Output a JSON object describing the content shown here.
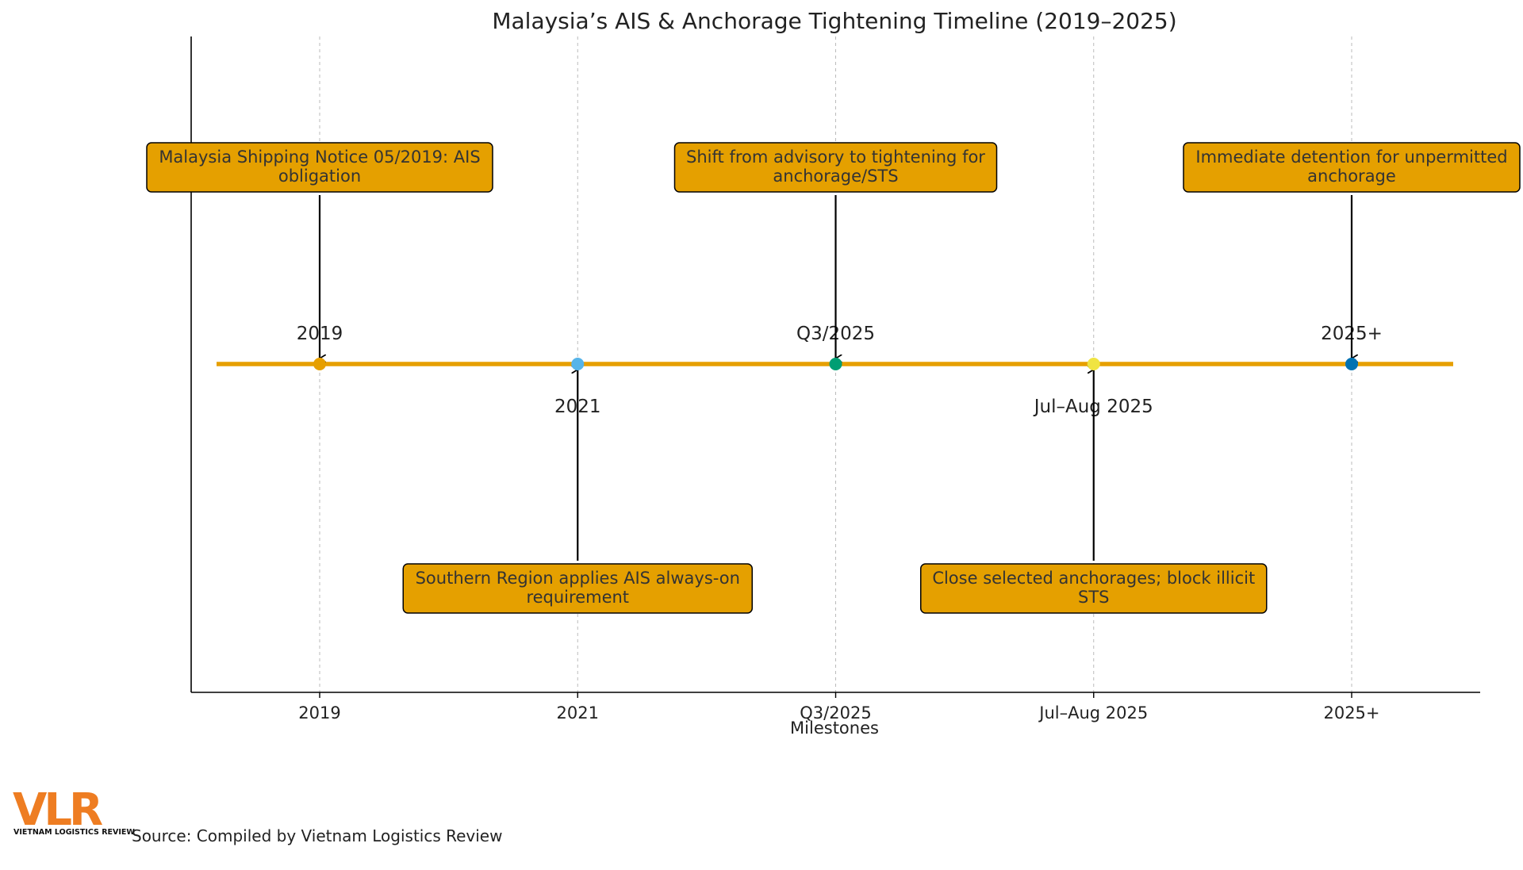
{
  "chart_data": {
    "type": "timeline",
    "title": "Malaysia’s AIS & Anchorage Tightening Timeline (2019–2025)",
    "xlabel": "Milestones",
    "ylabel": "",
    "categories": [
      "2019",
      "2021",
      "Q3/2025",
      "Jul–Aug 2025",
      "2025+"
    ],
    "grid": "vertical dashed at each milestone",
    "line_color": "#E69F00",
    "events": [
      {
        "date": "2019",
        "position": "above",
        "color": "#E69F00",
        "lines": [
          "Malaysia Shipping Notice 05/2019: AIS",
          "obligation"
        ]
      },
      {
        "date": "2021",
        "position": "below",
        "color": "#56B4E9",
        "lines": [
          "Southern Region applies AIS always-on",
          "requirement"
        ]
      },
      {
        "date": "Q3/2025",
        "position": "above",
        "color": "#009E73",
        "lines": [
          "Shift from advisory to tightening for",
          "anchorage/STS"
        ]
      },
      {
        "date": "Jul–Aug 2025",
        "position": "below",
        "color": "#F0E442",
        "lines": [
          "Close selected anchorages; block illicit",
          "STS"
        ]
      },
      {
        "date": "2025+",
        "position": "above",
        "color": "#0072B2",
        "lines": [
          "Immediate detention for unpermitted",
          "anchorage"
        ]
      }
    ],
    "box_color": "#E5A000"
  },
  "source": "Source: Compiled by Vietnam Logistics Review",
  "logo": {
    "mark": "VLR",
    "tagline": "VIETNAM LOGISTICS REVIEW",
    "color": "#EE7D22"
  }
}
